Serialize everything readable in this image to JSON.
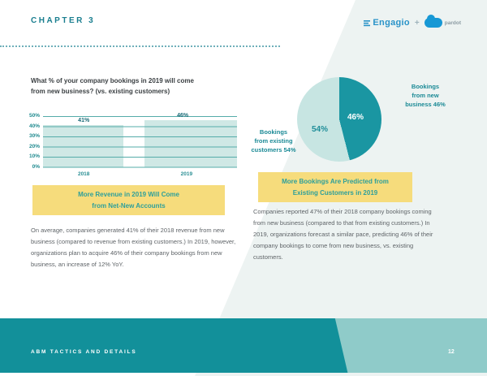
{
  "header": {
    "chapter": "CHAPTER 3",
    "logos": {
      "engagio": "Engagio",
      "plus": "+",
      "pardot": "pardot"
    }
  },
  "left_panel": {
    "question": "What % of your company bookings in 2019 will come\nfrom new business? (vs. existing customers)",
    "callout": "More Revenue in 2019 Will Come\nfrom Net-New Accounts",
    "paragraph": "On average, companies generated 41% of their 2018 revenue from new business (compared to revenue from existing customers.) In 2019, however, organizations plan to acquire 46% of their company bookings from new business, an increase of 12% YoY."
  },
  "right_panel": {
    "callout": "More Bookings Are Predicted from\nExisting Customers in 2019",
    "paragraph": "Companies reported 47% of their 2018 company bookings coming from new business (compared to that from existing customers.) In 2019, organizations forecast a similar pace, predicting 46% of their company bookings to come from new business, vs. existing customers."
  },
  "chart_data": [
    {
      "type": "bar",
      "title": "What % of your company bookings in 2019 will come from new business? (vs. existing customers)",
      "categories": [
        "2018",
        "2019"
      ],
      "values": [
        41,
        46
      ],
      "value_labels": [
        "41%",
        "46%"
      ],
      "yticks": [
        "50%",
        "40%",
        "30%",
        "20%",
        "10%",
        "0%"
      ],
      "ylim": [
        0,
        50
      ],
      "grid": true,
      "bar_color": "#cfe8e5"
    },
    {
      "type": "pie",
      "labels": [
        "Bookings\nfrom new\nbusiness 46%",
        "Bookings\nfrom existing\ncustomers 54%"
      ],
      "values": [
        46,
        54
      ],
      "slice_labels": [
        "46%",
        "54%"
      ],
      "colors": [
        "#1a96a2",
        "#c7e5e2"
      ]
    }
  ],
  "footer": {
    "section": "ABM TACTICS AND DETAILS",
    "page_number": "12"
  },
  "colors": {
    "teal_dark": "#12909a",
    "teal_light": "#8fcbc9",
    "accent_yellow": "#f6dc7c",
    "background_wedge": "#edf3f2"
  }
}
